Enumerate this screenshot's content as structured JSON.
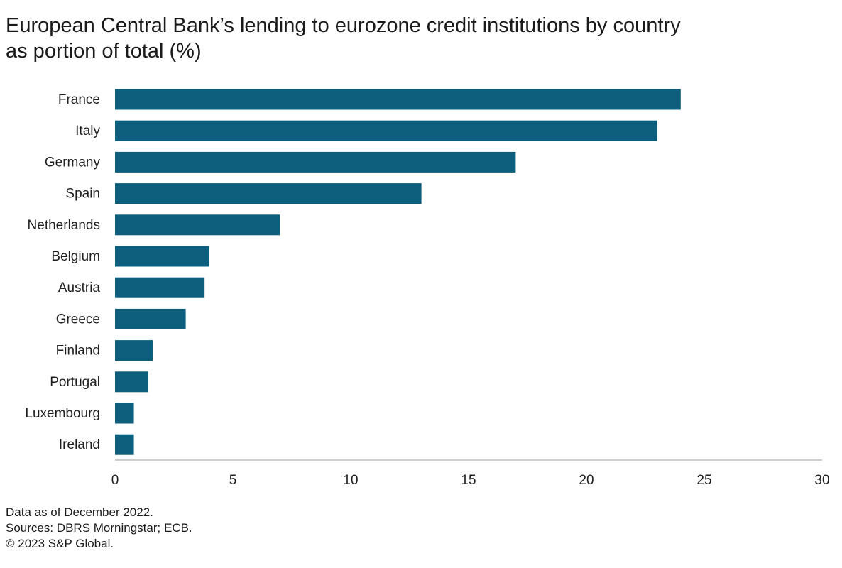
{
  "title_line1": "European Central Bank’s lending to eurozone credit institutions by country",
  "title_line2": "as portion of total (%)",
  "footnotes": [
    "Data as of December 2022.",
    "Sources: DBRS Morningstar; ECB.",
    "© 2023 S&P Global."
  ],
  "colors": {
    "bar": "#0e5f7e",
    "axis": "#bdbdbd",
    "text": "#1f1f1f"
  },
  "chart_data": {
    "type": "bar",
    "orientation": "horizontal",
    "title": "European Central Bank’s lending to eurozone credit institutions by country as portion of total (%)",
    "categories": [
      "France",
      "Italy",
      "Germany",
      "Spain",
      "Netherlands",
      "Belgium",
      "Austria",
      "Greece",
      "Finland",
      "Portugal",
      "Luxembourg",
      "Ireland"
    ],
    "values": [
      24.0,
      23.0,
      17.0,
      13.0,
      7.0,
      4.0,
      3.8,
      3.0,
      1.6,
      1.4,
      0.8,
      0.8
    ],
    "xlim": [
      0,
      30
    ],
    "xticks": [
      "0",
      "5",
      "10",
      "15",
      "20",
      "25",
      "30"
    ],
    "xlabel": "",
    "ylabel": "",
    "grid": false,
    "legend": "none"
  }
}
